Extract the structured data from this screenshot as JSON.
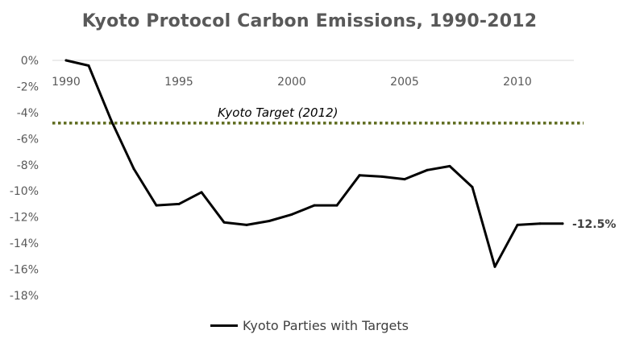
{
  "chart_data": {
    "type": "line",
    "title": "Kyoto Protocol Carbon Emissions, 1990-2012",
    "xlabel": "",
    "ylabel": "",
    "x": [
      1990,
      1991,
      1992,
      1993,
      1994,
      1995,
      1996,
      1997,
      1998,
      1999,
      2000,
      2001,
      2002,
      2003,
      2004,
      2005,
      2006,
      2007,
      2008,
      2009,
      2010,
      2011,
      2012
    ],
    "x_ticks": [
      "1990",
      "1995",
      "2000",
      "2005",
      "2010"
    ],
    "y_ticks": [
      "0%",
      "-2%",
      "-4%",
      "-6%",
      "-8%",
      "-10%",
      "-12%",
      "-14%",
      "-16%",
      "-18%"
    ],
    "ylim": [
      -18,
      0
    ],
    "xlim": [
      1990,
      2012
    ],
    "grid": false,
    "series": [
      {
        "name": "Kyoto Parties with Targets",
        "color": "#000000",
        "values": [
          0,
          -0.4,
          -4.6,
          -8.3,
          -11.1,
          -11.0,
          -10.1,
          -12.4,
          -12.6,
          -12.3,
          -11.8,
          -11.1,
          -11.1,
          -8.8,
          -8.9,
          -9.1,
          -8.4,
          -8.1,
          -9.7,
          -15.8,
          -12.6,
          -12.5,
          -12.5
        ]
      }
    ],
    "reference_line": {
      "label": "Kyoto Target (2012)",
      "value": -4.8,
      "color": "#5e6b1e"
    },
    "end_label": "-12.5%",
    "legend_position": "bottom"
  }
}
